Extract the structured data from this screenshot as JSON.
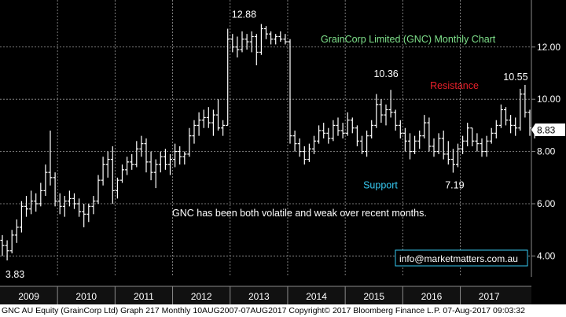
{
  "chart_data": {
    "type": "ohlc",
    "title": "GrainCorp Limited (GNC) Monthly Chart",
    "note": "GNC has been both volatile and weak over recent months.",
    "email": "info@marketmatters.com.au",
    "last_price": "8.83",
    "y_ticks": [
      "4.00",
      "6.00",
      "8.00",
      "10.00",
      "12.00"
    ],
    "ylim": [
      3.2,
      13.8
    ],
    "years": [
      "2009",
      "2010",
      "2011",
      "2012",
      "2013",
      "2014",
      "2015",
      "2016",
      "2017"
    ],
    "start_year": 2009,
    "start_month": 1,
    "annotations": [
      {
        "name": "high-2013",
        "text": "12.88",
        "color": "#ffffff"
      },
      {
        "name": "high-2015",
        "text": "10.36",
        "color": "#ffffff"
      },
      {
        "name": "high-2017",
        "text": "10.55",
        "color": "#ffffff"
      },
      {
        "name": "low-2009",
        "text": "3.83",
        "color": "#ffffff"
      },
      {
        "name": "low-2016",
        "text": "7.19",
        "color": "#ffffff"
      },
      {
        "name": "resistance",
        "text": "Resistance",
        "color": "#e8202a"
      },
      {
        "name": "support",
        "text": "Support",
        "color": "#36c8f0"
      }
    ],
    "title_color": "#7ee08a",
    "series": [
      {
        "h": 4.8,
        "l": 4.0,
        "o": 4.6,
        "c": 4.4
      },
      {
        "h": 4.6,
        "l": 3.83,
        "o": 4.4,
        "c": 4.2
      },
      {
        "h": 5.0,
        "l": 4.1,
        "o": 4.2,
        "c": 4.8
      },
      {
        "h": 5.4,
        "l": 4.5,
        "o": 4.8,
        "c": 5.1
      },
      {
        "h": 6.1,
        "l": 4.9,
        "o": 5.1,
        "c": 5.9
      },
      {
        "h": 6.3,
        "l": 5.5,
        "o": 5.9,
        "c": 5.8
      },
      {
        "h": 6.5,
        "l": 5.6,
        "o": 5.8,
        "c": 6.1
      },
      {
        "h": 6.4,
        "l": 5.7,
        "o": 6.1,
        "c": 6.0
      },
      {
        "h": 6.8,
        "l": 5.9,
        "o": 6.0,
        "c": 6.5
      },
      {
        "h": 7.5,
        "l": 6.3,
        "o": 6.5,
        "c": 7.2
      },
      {
        "h": 8.8,
        "l": 6.7,
        "o": 7.2,
        "c": 7.0
      },
      {
        "h": 7.2,
        "l": 5.9,
        "o": 7.0,
        "c": 6.1
      },
      {
        "h": 6.4,
        "l": 5.6,
        "o": 6.1,
        "c": 5.9
      },
      {
        "h": 6.3,
        "l": 5.5,
        "o": 5.9,
        "c": 6.1
      },
      {
        "h": 6.5,
        "l": 5.9,
        "o": 6.1,
        "c": 6.2
      },
      {
        "h": 6.4,
        "l": 5.8,
        "o": 6.2,
        "c": 6.0
      },
      {
        "h": 6.2,
        "l": 5.5,
        "o": 6.0,
        "c": 5.7
      },
      {
        "h": 6.0,
        "l": 5.1,
        "o": 5.7,
        "c": 5.6
      },
      {
        "h": 6.0,
        "l": 5.3,
        "o": 5.6,
        "c": 5.9
      },
      {
        "h": 6.3,
        "l": 5.6,
        "o": 5.9,
        "c": 6.1
      },
      {
        "h": 7.1,
        "l": 6.0,
        "o": 6.1,
        "c": 6.9
      },
      {
        "h": 7.8,
        "l": 6.7,
        "o": 6.9,
        "c": 7.5
      },
      {
        "h": 8.0,
        "l": 7.0,
        "o": 7.5,
        "c": 7.7
      },
      {
        "h": 8.2,
        "l": 6.0,
        "o": 7.7,
        "c": 6.5
      },
      {
        "h": 7.0,
        "l": 6.2,
        "o": 6.5,
        "c": 6.9
      },
      {
        "h": 7.5,
        "l": 6.8,
        "o": 6.9,
        "c": 7.3
      },
      {
        "h": 7.8,
        "l": 7.1,
        "o": 7.3,
        "c": 7.6
      },
      {
        "h": 7.9,
        "l": 7.3,
        "o": 7.6,
        "c": 7.5
      },
      {
        "h": 8.4,
        "l": 7.4,
        "o": 7.5,
        "c": 8.1
      },
      {
        "h": 8.6,
        "l": 7.8,
        "o": 8.1,
        "c": 8.3
      },
      {
        "h": 8.5,
        "l": 7.2,
        "o": 8.3,
        "c": 7.6
      },
      {
        "h": 8.0,
        "l": 6.9,
        "o": 7.6,
        "c": 7.2
      },
      {
        "h": 7.7,
        "l": 6.6,
        "o": 7.2,
        "c": 7.5
      },
      {
        "h": 8.0,
        "l": 7.2,
        "o": 7.5,
        "c": 7.8
      },
      {
        "h": 8.1,
        "l": 7.3,
        "o": 7.8,
        "c": 7.5
      },
      {
        "h": 7.9,
        "l": 7.1,
        "o": 7.5,
        "c": 7.7
      },
      {
        "h": 8.3,
        "l": 7.4,
        "o": 7.7,
        "c": 8.0
      },
      {
        "h": 8.2,
        "l": 7.5,
        "o": 8.0,
        "c": 7.8
      },
      {
        "h": 8.0,
        "l": 7.5,
        "o": 7.8,
        "c": 7.9
      },
      {
        "h": 8.9,
        "l": 7.8,
        "o": 7.9,
        "c": 8.6
      },
      {
        "h": 9.2,
        "l": 8.3,
        "o": 8.6,
        "c": 9.0
      },
      {
        "h": 9.5,
        "l": 8.6,
        "o": 9.0,
        "c": 9.2
      },
      {
        "h": 9.6,
        "l": 8.9,
        "o": 9.2,
        "c": 9.3
      },
      {
        "h": 9.7,
        "l": 8.9,
        "o": 9.3,
        "c": 9.1
      },
      {
        "h": 9.6,
        "l": 8.6,
        "o": 9.1,
        "c": 9.4
      },
      {
        "h": 10.0,
        "l": 8.8,
        "o": 9.4,
        "c": 8.9
      },
      {
        "h": 9.2,
        "l": 8.6,
        "o": 8.9,
        "c": 9.0
      },
      {
        "h": 12.7,
        "l": 9.0,
        "o": 9.0,
        "c": 12.3
      },
      {
        "h": 12.5,
        "l": 11.8,
        "o": 12.3,
        "c": 12.0
      },
      {
        "h": 12.4,
        "l": 11.6,
        "o": 12.0,
        "c": 11.9
      },
      {
        "h": 12.6,
        "l": 11.8,
        "o": 11.9,
        "c": 12.3
      },
      {
        "h": 12.5,
        "l": 11.9,
        "o": 12.3,
        "c": 12.2
      },
      {
        "h": 12.6,
        "l": 11.8,
        "o": 12.2,
        "c": 12.4
      },
      {
        "h": 12.5,
        "l": 11.3,
        "o": 12.4,
        "c": 11.8
      },
      {
        "h": 12.88,
        "l": 11.7,
        "o": 11.8,
        "c": 12.7
      },
      {
        "h": 12.8,
        "l": 12.3,
        "o": 12.7,
        "c": 12.5
      },
      {
        "h": 12.6,
        "l": 12.1,
        "o": 12.5,
        "c": 12.3
      },
      {
        "h": 12.5,
        "l": 12.1,
        "o": 12.3,
        "c": 12.4
      },
      {
        "h": 12.6,
        "l": 12.2,
        "o": 12.4,
        "c": 12.3
      },
      {
        "h": 12.5,
        "l": 12.1,
        "o": 12.3,
        "c": 12.2
      },
      {
        "h": 12.3,
        "l": 8.3,
        "o": 12.2,
        "c": 8.6
      },
      {
        "h": 8.8,
        "l": 8.0,
        "o": 8.6,
        "c": 8.3
      },
      {
        "h": 8.5,
        "l": 7.8,
        "o": 8.3,
        "c": 8.0
      },
      {
        "h": 8.2,
        "l": 7.5,
        "o": 8.0,
        "c": 7.7
      },
      {
        "h": 8.3,
        "l": 7.6,
        "o": 7.7,
        "c": 8.1
      },
      {
        "h": 8.6,
        "l": 7.9,
        "o": 8.1,
        "c": 8.4
      },
      {
        "h": 9.0,
        "l": 8.3,
        "o": 8.4,
        "c": 8.8
      },
      {
        "h": 9.1,
        "l": 8.5,
        "o": 8.8,
        "c": 8.7
      },
      {
        "h": 8.9,
        "l": 8.3,
        "o": 8.7,
        "c": 8.5
      },
      {
        "h": 9.2,
        "l": 8.4,
        "o": 8.5,
        "c": 9.0
      },
      {
        "h": 9.3,
        "l": 8.6,
        "o": 9.0,
        "c": 8.8
      },
      {
        "h": 9.1,
        "l": 8.5,
        "o": 8.8,
        "c": 8.7
      },
      {
        "h": 9.5,
        "l": 8.6,
        "o": 8.7,
        "c": 9.2
      },
      {
        "h": 9.3,
        "l": 8.7,
        "o": 9.2,
        "c": 8.9
      },
      {
        "h": 9.0,
        "l": 8.2,
        "o": 8.9,
        "c": 8.4
      },
      {
        "h": 8.6,
        "l": 7.9,
        "o": 8.4,
        "c": 8.0
      },
      {
        "h": 8.8,
        "l": 7.8,
        "o": 8.0,
        "c": 8.6
      },
      {
        "h": 9.2,
        "l": 8.5,
        "o": 8.6,
        "c": 9.0
      },
      {
        "h": 10.2,
        "l": 8.9,
        "o": 9.0,
        "c": 9.8
      },
      {
        "h": 10.0,
        "l": 9.1,
        "o": 9.8,
        "c": 9.4
      },
      {
        "h": 9.8,
        "l": 9.0,
        "o": 9.4,
        "c": 9.6
      },
      {
        "h": 10.36,
        "l": 9.3,
        "o": 9.6,
        "c": 9.5
      },
      {
        "h": 9.6,
        "l": 8.8,
        "o": 9.5,
        "c": 9.0
      },
      {
        "h": 9.2,
        "l": 8.5,
        "o": 9.0,
        "c": 8.7
      },
      {
        "h": 8.9,
        "l": 8.0,
        "o": 8.7,
        "c": 8.4
      },
      {
        "h": 8.7,
        "l": 7.7,
        "o": 8.4,
        "c": 8.0
      },
      {
        "h": 8.6,
        "l": 7.9,
        "o": 8.0,
        "c": 8.4
      },
      {
        "h": 8.8,
        "l": 8.1,
        "o": 8.4,
        "c": 8.6
      },
      {
        "h": 9.4,
        "l": 8.5,
        "o": 8.6,
        "c": 9.1
      },
      {
        "h": 9.3,
        "l": 8.0,
        "o": 9.1,
        "c": 8.2
      },
      {
        "h": 8.5,
        "l": 7.8,
        "o": 8.2,
        "c": 8.0
      },
      {
        "h": 8.7,
        "l": 7.9,
        "o": 8.0,
        "c": 8.5
      },
      {
        "h": 8.8,
        "l": 7.7,
        "o": 8.5,
        "c": 7.9
      },
      {
        "h": 8.4,
        "l": 7.5,
        "o": 7.9,
        "c": 7.7
      },
      {
        "h": 8.1,
        "l": 7.19,
        "o": 7.7,
        "c": 7.5
      },
      {
        "h": 8.3,
        "l": 7.4,
        "o": 7.5,
        "c": 8.1
      },
      {
        "h": 8.6,
        "l": 7.9,
        "o": 8.1,
        "c": 8.4
      },
      {
        "h": 9.1,
        "l": 8.2,
        "o": 8.4,
        "c": 8.9
      },
      {
        "h": 8.9,
        "l": 8.2,
        "o": 8.9,
        "c": 8.4
      },
      {
        "h": 8.7,
        "l": 8.0,
        "o": 8.4,
        "c": 8.3
      },
      {
        "h": 8.5,
        "l": 7.8,
        "o": 8.3,
        "c": 8.0
      },
      {
        "h": 8.6,
        "l": 7.8,
        "o": 8.0,
        "c": 8.4
      },
      {
        "h": 8.9,
        "l": 8.3,
        "o": 8.4,
        "c": 8.7
      },
      {
        "h": 9.2,
        "l": 8.5,
        "o": 8.7,
        "c": 9.0
      },
      {
        "h": 9.8,
        "l": 8.9,
        "o": 9.0,
        "c": 9.6
      },
      {
        "h": 9.7,
        "l": 9.0,
        "o": 9.6,
        "c": 9.2
      },
      {
        "h": 9.4,
        "l": 8.7,
        "o": 9.2,
        "c": 9.0
      },
      {
        "h": 9.3,
        "l": 8.6,
        "o": 9.0,
        "c": 8.9
      },
      {
        "h": 10.4,
        "l": 8.8,
        "o": 8.9,
        "c": 10.2
      },
      {
        "h": 10.55,
        "l": 9.3,
        "o": 10.2,
        "c": 9.5
      },
      {
        "h": 9.6,
        "l": 8.6,
        "o": 9.5,
        "c": 8.9
      },
      {
        "h": 9.0,
        "l": 8.5,
        "o": 8.9,
        "c": 8.83
      }
    ]
  },
  "footer": {
    "text": "GNC AU Equity (GrainCorp Ltd) Graph 217  Monthly 10AUG2007-07AUG2017 Copyright© 2017 Bloomberg Finance L.P. 07-Aug-2017 09:03:32"
  }
}
